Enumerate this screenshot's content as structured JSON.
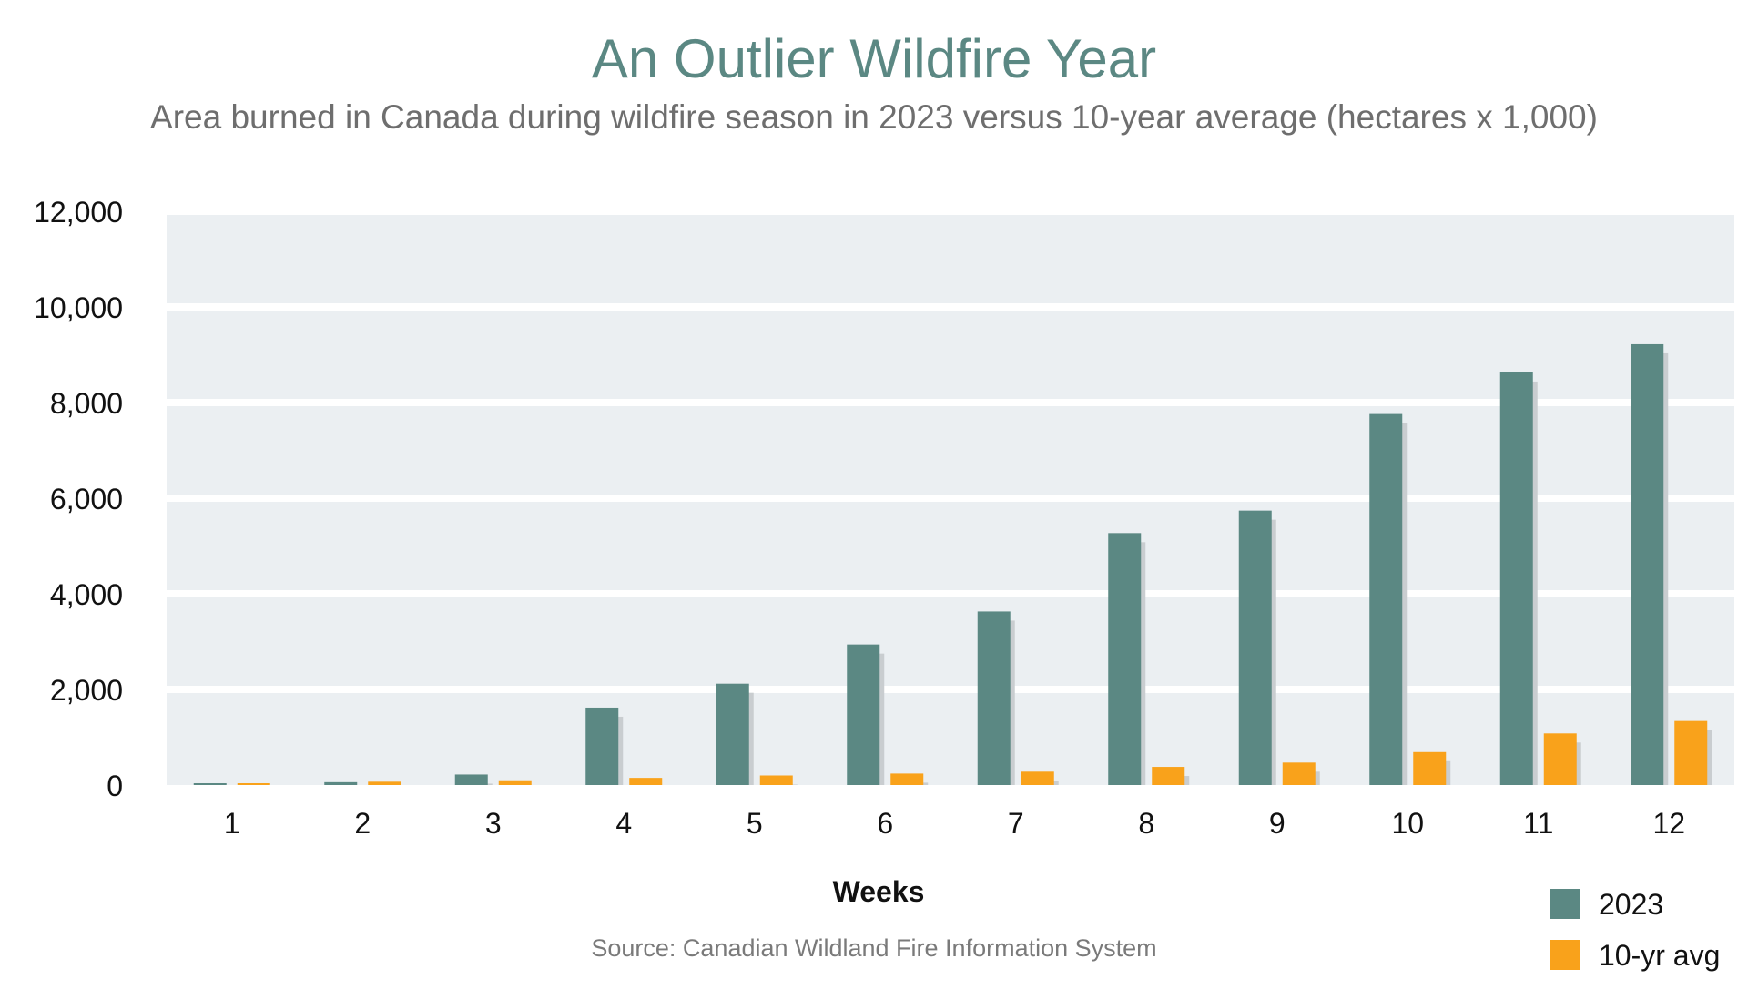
{
  "title": "An Outlier Wildfire Year",
  "subtitle": "Area burned in Canada during wildfire season in 2023 versus 10-year average (hectares x 1,000)",
  "source": "Source: Canadian Wildland Fire Information System",
  "colors": {
    "series_2023": "#5b8883",
    "series_avg": "#f9a21b",
    "plot_bg": "#ebeff2",
    "shadow": "#c9cdd0"
  },
  "chart_data": {
    "type": "bar",
    "xlabel": "Weeks",
    "ylabel": "",
    "ylim": [
      0,
      12000
    ],
    "yticks": [
      0,
      2000,
      4000,
      6000,
      8000,
      10000,
      12000
    ],
    "ytick_labels": [
      "0",
      "2,000",
      "4,000",
      "6,000",
      "8,000",
      "10,000",
      "12,000"
    ],
    "grid": true,
    "legend_position": "bottom-right",
    "categories": [
      "1",
      "2",
      "3",
      "4",
      "5",
      "6",
      "7",
      "8",
      "9",
      "10",
      "11",
      "12"
    ],
    "series": [
      {
        "name": "2023",
        "values": [
          20,
          60,
          220,
          1620,
          2120,
          2940,
          3630,
          5270,
          5740,
          7760,
          8630,
          9220
        ]
      },
      {
        "name": "10-yr avg",
        "values": [
          30,
          70,
          100,
          150,
          200,
          240,
          280,
          380,
          470,
          690,
          1080,
          1340
        ]
      }
    ]
  }
}
